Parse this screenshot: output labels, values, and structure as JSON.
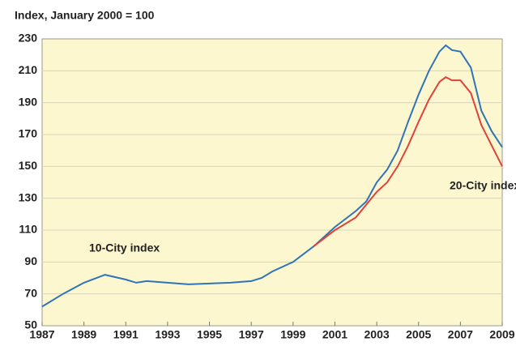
{
  "chart_data": {
    "type": "line",
    "axis_label": "Index, January 2000 = 100",
    "xlim": [
      1987,
      2009
    ],
    "xticks": [
      1987,
      1989,
      1991,
      1993,
      1995,
      1997,
      1999,
      2001,
      2003,
      2005,
      2007,
      2009
    ],
    "ylim": [
      50,
      230
    ],
    "yticks": [
      50,
      70,
      90,
      110,
      130,
      150,
      170,
      190,
      210,
      230
    ],
    "grid": true,
    "series": [
      {
        "name": "10-City index",
        "color": "#2f74b9",
        "x": [
          1987,
          1988,
          1989,
          1990,
          1991,
          1991.5,
          1992,
          1993,
          1994,
          1995,
          1996,
          1997,
          1997.5,
          1998,
          1999,
          2000,
          2001,
          2002,
          2002.5,
          2003,
          2003.5,
          2004,
          2004.5,
          2005,
          2005.5,
          2006,
          2006.3,
          2006.6,
          2007,
          2007.5,
          2008,
          2008.5,
          2009
        ],
        "values": [
          62,
          70,
          77,
          82,
          79,
          77,
          78,
          77,
          76,
          76.5,
          77,
          78,
          80,
          84,
          90,
          100,
          112,
          122,
          128,
          140,
          148,
          160,
          178,
          195,
          210,
          222,
          226,
          223,
          222,
          212,
          185,
          172,
          162
        ]
      },
      {
        "name": "20-City index",
        "color": "#e2413b",
        "x": [
          2000,
          2001,
          2002,
          2002.5,
          2003,
          2003.5,
          2004,
          2004.5,
          2005,
          2005.5,
          2006,
          2006.3,
          2006.6,
          2007,
          2007.5,
          2008,
          2008.5,
          2009
        ],
        "values": [
          100,
          110,
          118,
          126,
          134,
          140,
          150,
          163,
          178,
          192,
          203,
          206,
          204,
          204,
          196,
          176,
          163,
          150
        ]
      }
    ]
  }
}
